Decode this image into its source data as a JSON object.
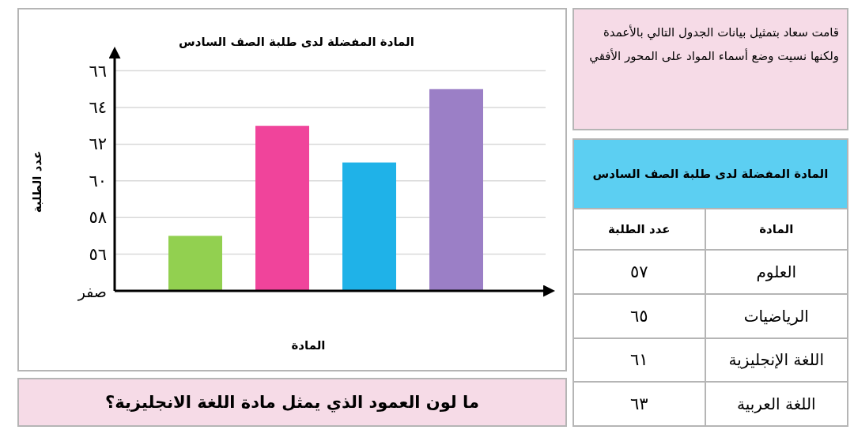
{
  "chart_data": [
    {
      "type": "bar",
      "title": "المادة المفضلة لدى طلبة الصف السادس",
      "xlabel": "المادة",
      "ylabel": "عدد الطلبة",
      "categories": [
        null,
        null,
        null,
        null
      ],
      "values": [
        57,
        63,
        61,
        65
      ],
      "colors": [
        "#92d050",
        "#f0449b",
        "#1fb2e8",
        "#9b7fc6"
      ],
      "ylim": [
        54,
        66.8
      ],
      "yticks": [
        {
          "value": 56,
          "label": "٥٦"
        },
        {
          "value": 58,
          "label": "٥٨"
        },
        {
          "value": 60,
          "label": "٦٠"
        },
        {
          "value": 62,
          "label": "٦٢"
        },
        {
          "value": 64,
          "label": "٦٤"
        },
        {
          "value": 66,
          "label": "٦٦"
        }
      ],
      "grid": "y",
      "annotations": [
        "صفر",
        "ما لون العمود الذي يمثل مادة اللغة الانجليزية؟"
      ]
    },
    {
      "type": "other",
      "title": "المادة المفضلة لدى طلبة الصف السادس",
      "xlabel": "المادة",
      "ylabel": "عدد الطلبة",
      "categories": [
        "العلوم",
        "الرياضيات",
        "اللغة الإنجليزية",
        "اللغة العربية"
      ],
      "values": [
        57,
        65,
        61,
        63
      ],
      "value_labels": [
        "٥٧",
        "٦٥",
        "٦١",
        "٦٣"
      ],
      "annotations": [
        "قامت سعاد بتمثيل بيانات الجدول التالي بالأعمدة ولكنها نسيت وضع أسماء المواد على المحور الأفقي"
      ]
    }
  ]
}
